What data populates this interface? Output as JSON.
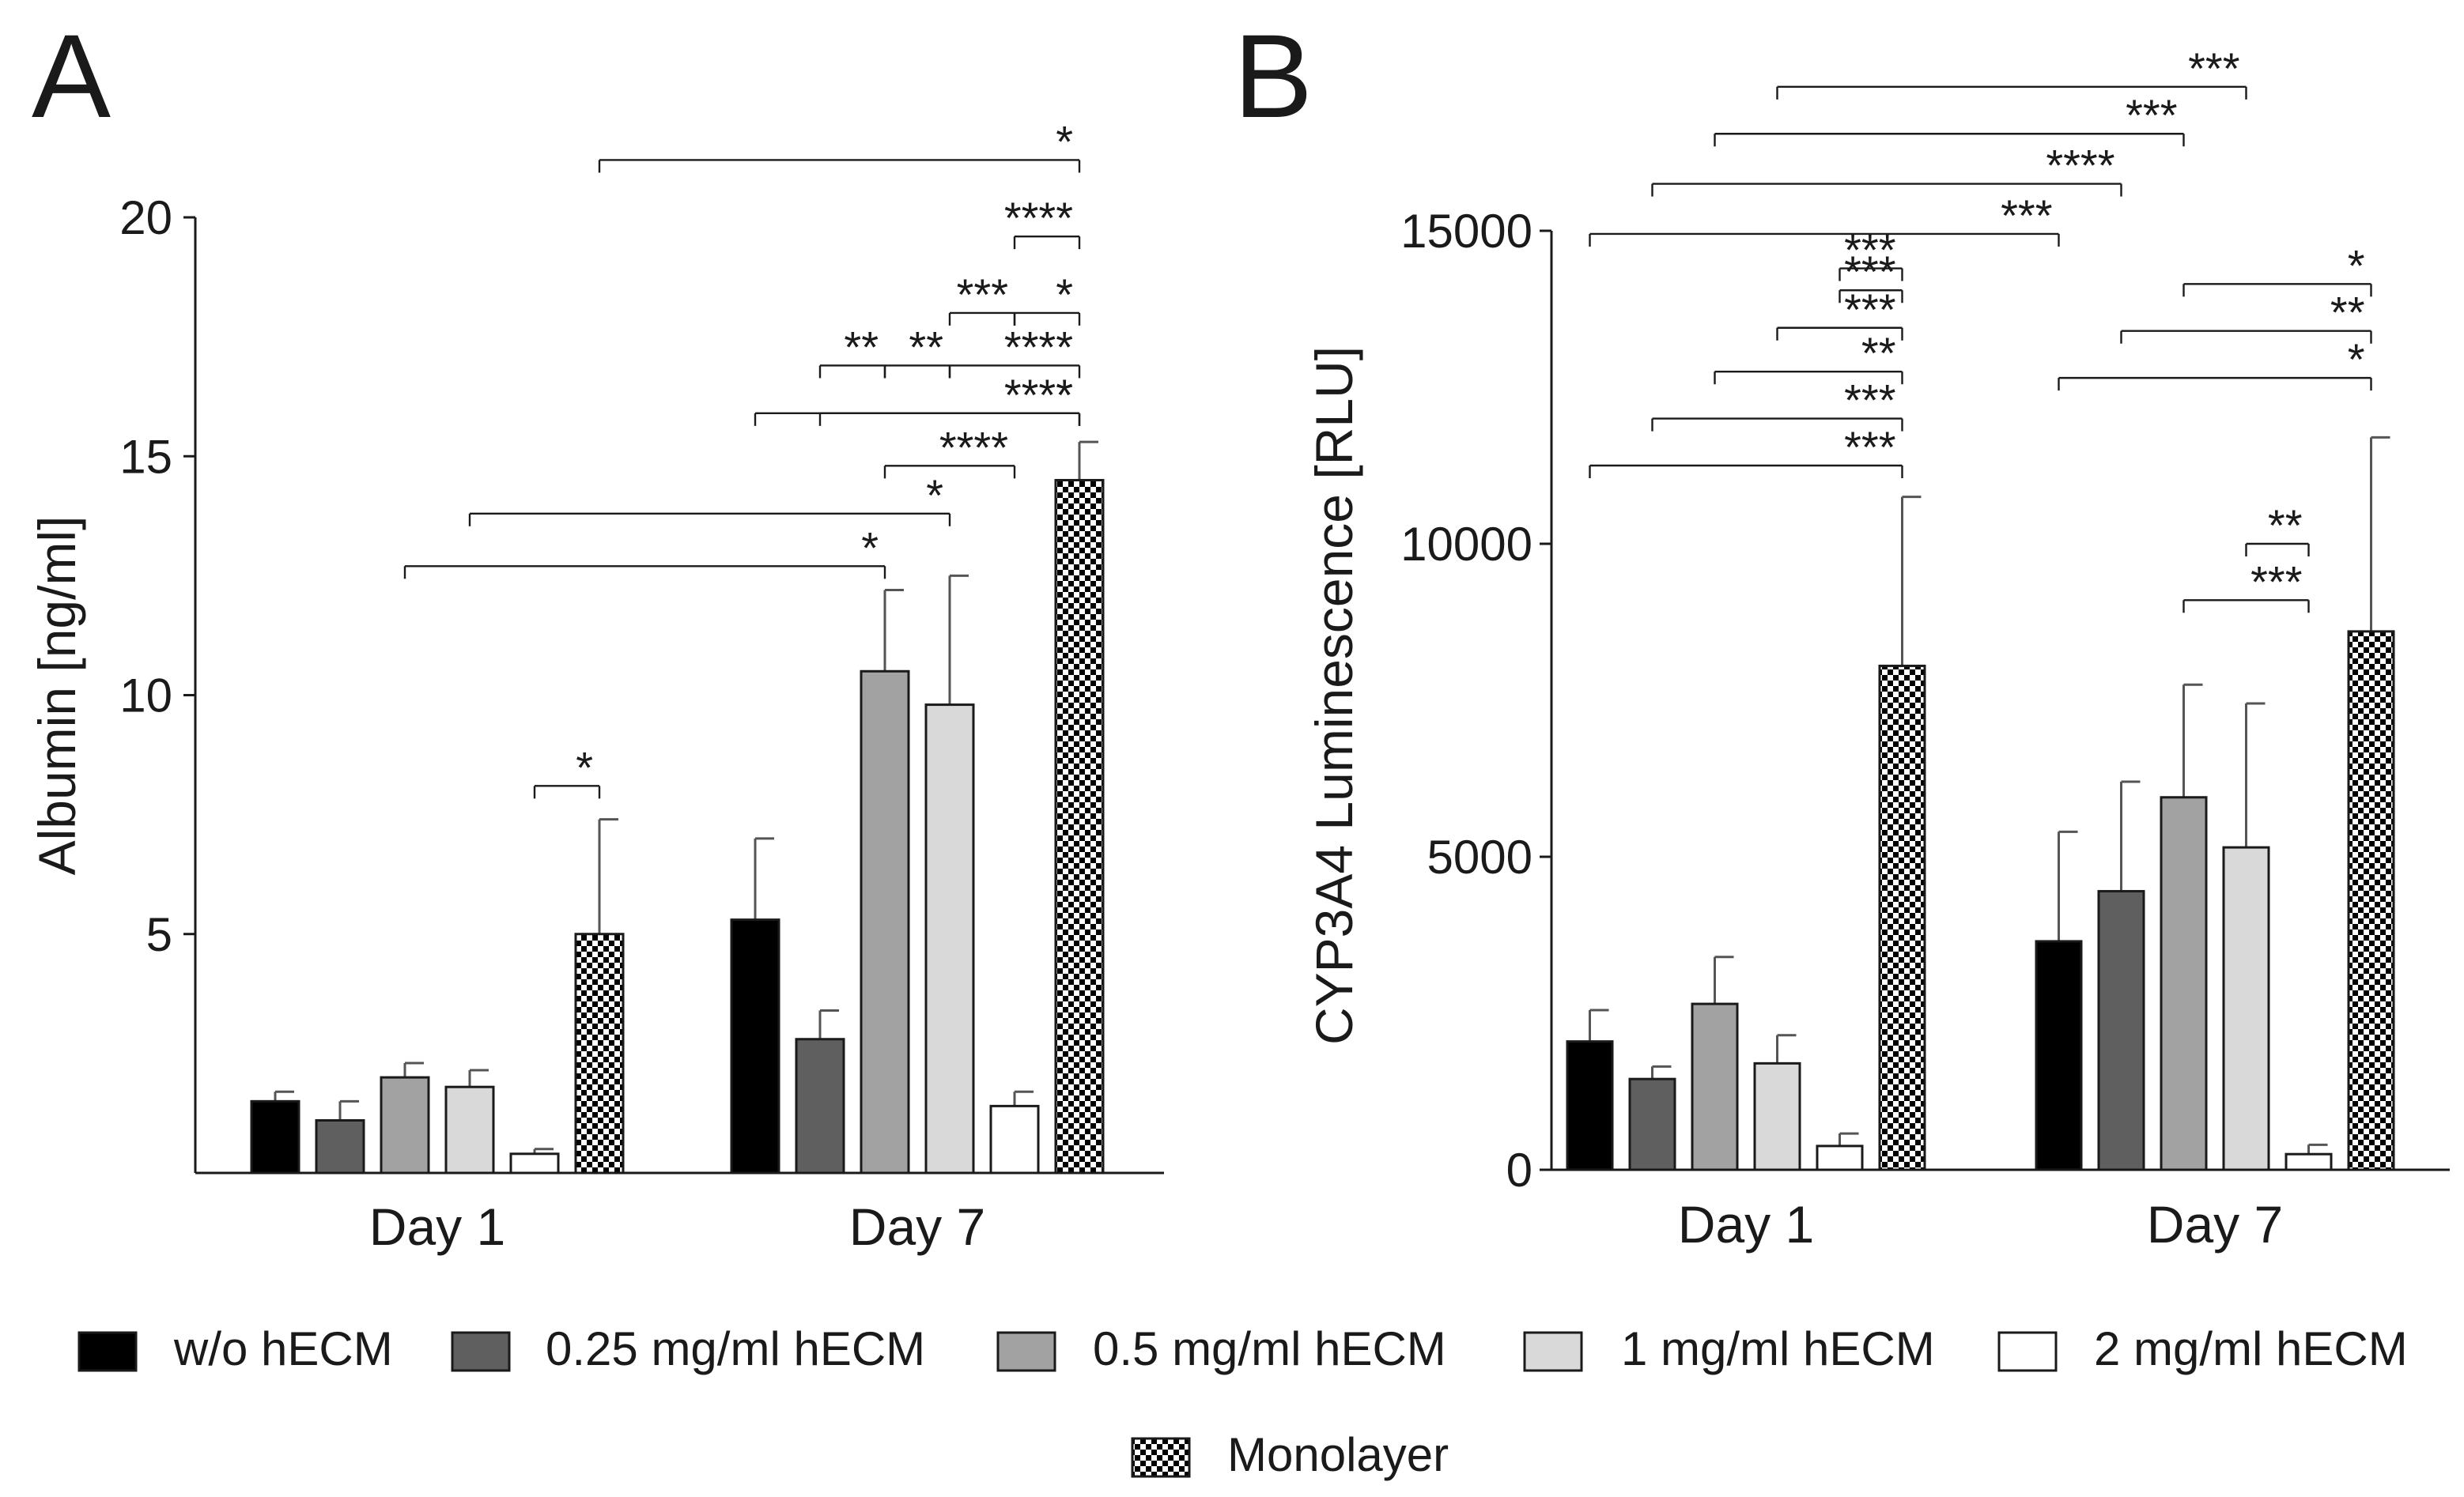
{
  "panels": [
    {
      "letter": "A"
    },
    {
      "letter": "B"
    }
  ],
  "legend": [
    {
      "label": "w/o hECM",
      "color": "#000000",
      "pattern": "solid"
    },
    {
      "label": "0.25 mg/ml hECM",
      "color": "#5f5f5f",
      "pattern": "solid"
    },
    {
      "label": "0.5 mg/ml hECM",
      "color": "#a2a2a2",
      "pattern": "solid"
    },
    {
      "label": "1 mg/ml hECM",
      "color": "#d9d9d9",
      "pattern": "solid"
    },
    {
      "label": "2 mg/ml hECM",
      "color": "#ffffff",
      "pattern": "solid"
    },
    {
      "label": "Monolayer",
      "color": "#000000",
      "pattern": "checker"
    }
  ],
  "chart_data": [
    {
      "type": "bar",
      "panel": "A",
      "title": "",
      "xlabel": "",
      "ylabel": "Albumin [ng/ml]",
      "categories": [
        "Day 1",
        "Day 7"
      ],
      "ylim": [
        0,
        20
      ],
      "yticks": [
        5,
        10,
        15,
        20
      ],
      "series": [
        {
          "name": "w/o hECM",
          "values": [
            1.5,
            5.3
          ],
          "errors": [
            0.2,
            1.7
          ]
        },
        {
          "name": "0.25 mg/ml hECM",
          "values": [
            1.1,
            2.8
          ],
          "errors": [
            0.4,
            0.6
          ]
        },
        {
          "name": "0.5 mg/ml hECM",
          "values": [
            2.0,
            10.5
          ],
          "errors": [
            0.3,
            1.7
          ]
        },
        {
          "name": "1 mg/ml hECM",
          "values": [
            1.8,
            9.8
          ],
          "errors": [
            0.35,
            2.7
          ]
        },
        {
          "name": "2 mg/ml hECM",
          "values": [
            0.4,
            1.4
          ],
          "errors": [
            0.1,
            0.3
          ]
        },
        {
          "name": "Monolayer",
          "values": [
            5.0,
            14.5
          ],
          "errors": [
            2.4,
            0.8
          ]
        }
      ],
      "significance": [
        {
          "label": "*",
          "from": [
            0,
            4
          ],
          "to": [
            0,
            5
          ],
          "y": 8.1
        },
        {
          "label": "*",
          "from": [
            0,
            2
          ],
          "to": [
            1,
            2
          ],
          "y": 12.7
        },
        {
          "label": "*",
          "from": [
            0,
            3
          ],
          "to": [
            1,
            3
          ],
          "y": 13.8
        },
        {
          "label": "****",
          "from": [
            1,
            2
          ],
          "to": [
            1,
            4
          ],
          "y": 14.8
        },
        {
          "label": "*",
          "from": [
            1,
            0
          ],
          "to": [
            1,
            5
          ],
          "y": 15.9
        },
        {
          "label": "****",
          "from": [
            1,
            1
          ],
          "to": [
            1,
            5
          ],
          "y": 15.9
        },
        {
          "label": "**",
          "from": [
            1,
            1
          ],
          "to": [
            1,
            2
          ],
          "y": 16.9
        },
        {
          "label": "**",
          "from": [
            1,
            2
          ],
          "to": [
            1,
            3
          ],
          "y": 16.9
        },
        {
          "label": "****",
          "from": [
            1,
            3
          ],
          "to": [
            1,
            5
          ],
          "y": 16.9
        },
        {
          "label": "***",
          "from": [
            1,
            3
          ],
          "to": [
            1,
            4
          ],
          "y": 18.0
        },
        {
          "label": "*",
          "from": [
            1,
            4
          ],
          "to": [
            1,
            5
          ],
          "y": 18.0
        },
        {
          "label": "****",
          "from": [
            1,
            4
          ],
          "to": [
            1,
            5
          ],
          "y": 19.6
        },
        {
          "label": "*",
          "from": [
            0,
            5
          ],
          "to": [
            1,
            5
          ],
          "y": 21.2
        }
      ]
    },
    {
      "type": "bar",
      "panel": "B",
      "title": "",
      "xlabel": "",
      "ylabel": "CYP3A4 Luminescence [RLU]",
      "categories": [
        "Day 1",
        "Day 7"
      ],
      "ylim": [
        0,
        15000
      ],
      "yticks": [
        0,
        5000,
        10000,
        15000
      ],
      "series": [
        {
          "name": "w/o hECM",
          "values": [
            2050,
            3650
          ],
          "errors": [
            500,
            1750
          ]
        },
        {
          "name": "0.25 mg/ml hECM",
          "values": [
            1450,
            4450
          ],
          "errors": [
            200,
            1750
          ]
        },
        {
          "name": "0.5 mg/ml hECM",
          "values": [
            2650,
            5950
          ],
          "errors": [
            750,
            1800
          ]
        },
        {
          "name": "1 mg/ml hECM",
          "values": [
            1700,
            5150
          ],
          "errors": [
            450,
            2300
          ]
        },
        {
          "name": "2 mg/ml hECM",
          "values": [
            380,
            250
          ],
          "errors": [
            200,
            150
          ]
        },
        {
          "name": "Monolayer",
          "values": [
            8050,
            8600
          ],
          "errors": [
            2700,
            3100
          ]
        }
      ],
      "significance": [
        {
          "label": "***",
          "from": [
            0,
            0
          ],
          "to": [
            0,
            5
          ],
          "y": 11250
        },
        {
          "label": "***",
          "from": [
            0,
            1
          ],
          "to": [
            0,
            5
          ],
          "y": 12000
        },
        {
          "label": "**",
          "from": [
            0,
            2
          ],
          "to": [
            0,
            5
          ],
          "y": 12750
        },
        {
          "label": "***",
          "from": [
            0,
            3
          ],
          "to": [
            0,
            5
          ],
          "y": 13450
        },
        {
          "label": "***",
          "from": [
            0,
            4
          ],
          "to": [
            0,
            5
          ],
          "y": 14050
        },
        {
          "label": "***",
          "from": [
            0,
            4
          ],
          "to": [
            0,
            5
          ],
          "y": 14400
        },
        {
          "label": "***",
          "from": [
            0,
            0
          ],
          "to": [
            1,
            0
          ],
          "y": 14950
        },
        {
          "label": "****",
          "from": [
            0,
            1
          ],
          "to": [
            1,
            1
          ],
          "y": 15750
        },
        {
          "label": "***",
          "from": [
            0,
            2
          ],
          "to": [
            1,
            2
          ],
          "y": 16550
        },
        {
          "label": "***",
          "from": [
            0,
            3
          ],
          "to": [
            1,
            3
          ],
          "y": 17300
        },
        {
          "label": "***",
          "from": [
            1,
            2
          ],
          "to": [
            1,
            4
          ],
          "y": 9100
        },
        {
          "label": "**",
          "from": [
            1,
            3
          ],
          "to": [
            1,
            4
          ],
          "y": 10000
        },
        {
          "label": "*",
          "from": [
            1,
            0
          ],
          "to": [
            1,
            5
          ],
          "y": 12650
        },
        {
          "label": "**",
          "from": [
            1,
            1
          ],
          "to": [
            1,
            5
          ],
          "y": 13400
        },
        {
          "label": "*",
          "from": [
            1,
            2
          ],
          "to": [
            1,
            5
          ],
          "y": 14150
        }
      ]
    }
  ]
}
